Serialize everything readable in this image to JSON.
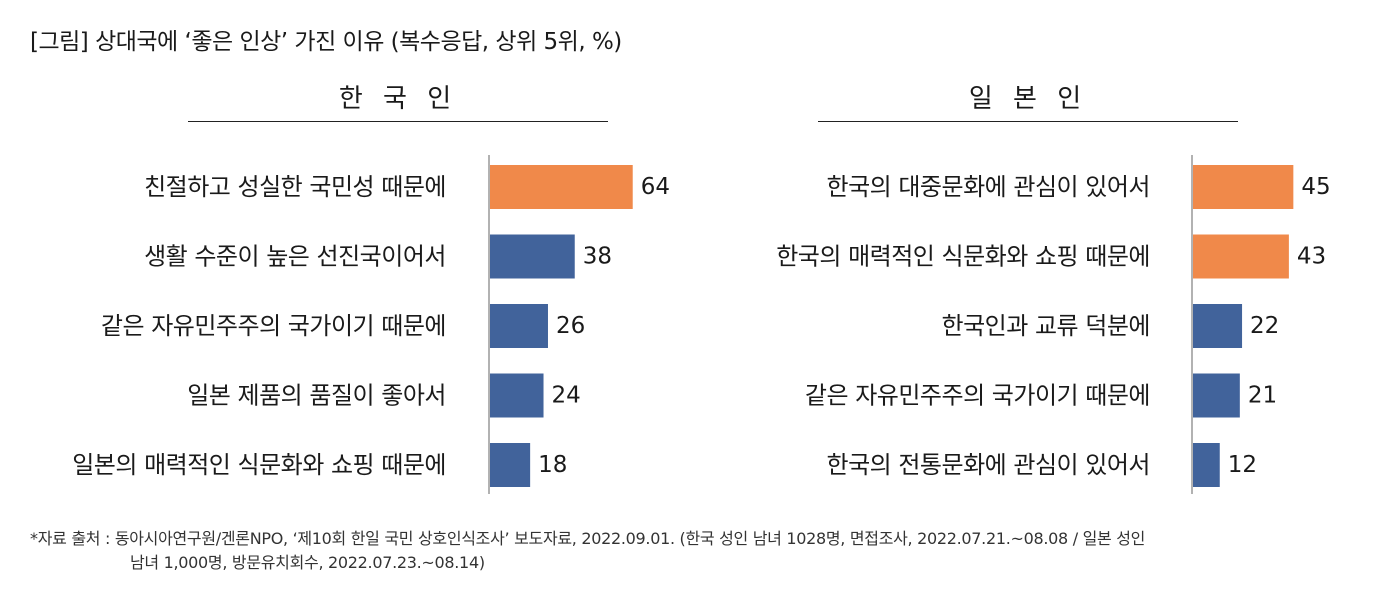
{
  "figure": {
    "title": "[그림] 상대국에 ‘좋은 인상’ 가진 이유 (복수응답, 상위 5위, %)"
  },
  "colors": {
    "highlight": "#F0894A",
    "base": "#41639B",
    "axis": "#999999"
  },
  "chart_data": [
    {
      "type": "bar",
      "orientation": "horizontal",
      "title": "한 국 인",
      "categories": [
        "친절하고 성실한 국민성 때문에",
        "생활 수준이 높은 선진국이어서",
        "같은 자유민주주의 국가이기 때문에",
        "일본 제품의 품질이 좋아서",
        "일본의 매력적인 식문화와 쇼핑 때문에"
      ],
      "values": [
        64,
        38,
        26,
        24,
        18
      ],
      "highlighted": [
        true,
        false,
        false,
        false,
        false
      ],
      "xlim": [
        0,
        100
      ],
      "grid": false
    },
    {
      "type": "bar",
      "orientation": "horizontal",
      "title": "일 본 인",
      "categories": [
        "한국의 대중문화에 관심이 있어서",
        "한국의 매력적인 식문화와 쇼핑 때문에",
        "한국인과 교류 덕분에",
        "같은 자유민주주의 국가이기 때문에",
        "한국의 전통문화에 관심이 있어서"
      ],
      "values": [
        45,
        43,
        22,
        21,
        12
      ],
      "highlighted": [
        true,
        true,
        false,
        false,
        false
      ],
      "xlim": [
        0,
        100
      ],
      "grid": false
    }
  ],
  "source": {
    "line1": "*자료 출처 : 동아시아연구원/겐론NPO, ‘제10회 한일 국민 상호인식조사’ 보도자료, 2022.09.01.  (한국 성인 남녀 1028명, 면접조사, 2022.07.21.~08.08 / 일본 성인",
    "line2": "남녀 1,000명, 방문유치회수, 2022.07.23.~08.14)"
  }
}
